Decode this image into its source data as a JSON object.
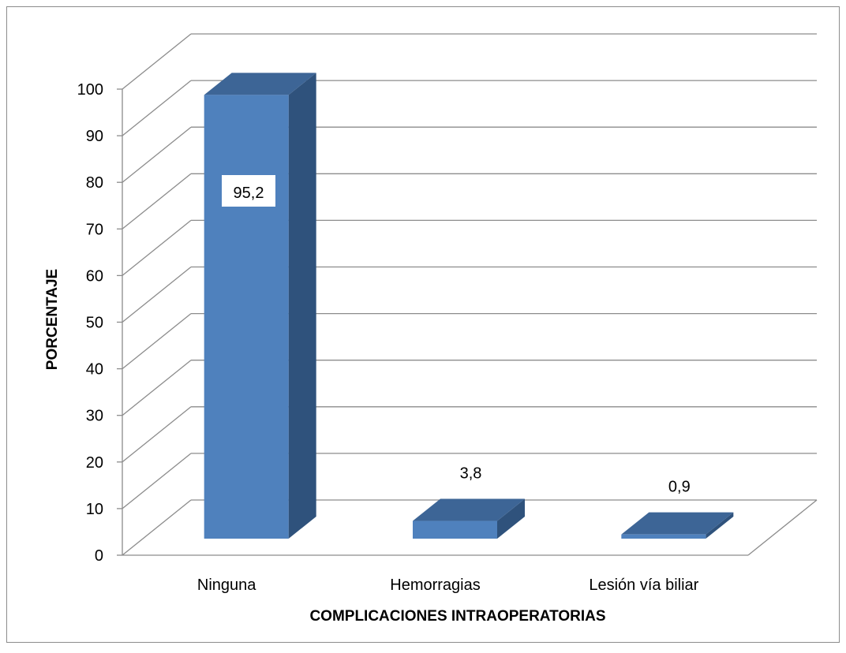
{
  "chart_data": {
    "type": "bar",
    "subtype": "3d-column",
    "categories": [
      "Ninguna",
      "Hemorragias",
      "Lesión vía biliar"
    ],
    "values": [
      95.2,
      3.8,
      0.9
    ],
    "data_labels": [
      "95,2",
      "3,8",
      "0,9"
    ],
    "xlabel": "COMPLICACIONES INTRAOPERATORIAS",
    "ylabel": "PORCENTAJE",
    "ylim": [
      0,
      100
    ],
    "yticks": [
      0,
      10,
      20,
      30,
      40,
      50,
      60,
      70,
      80,
      90,
      100
    ],
    "grid": true,
    "legend": "none",
    "colors": {
      "bar_front": "#4f81bd",
      "bar_side": "#2f527c",
      "bar_top": "#3d6596",
      "grid": "#8c8c8c",
      "text": "#000000",
      "border": "#8c8c8c"
    }
  }
}
